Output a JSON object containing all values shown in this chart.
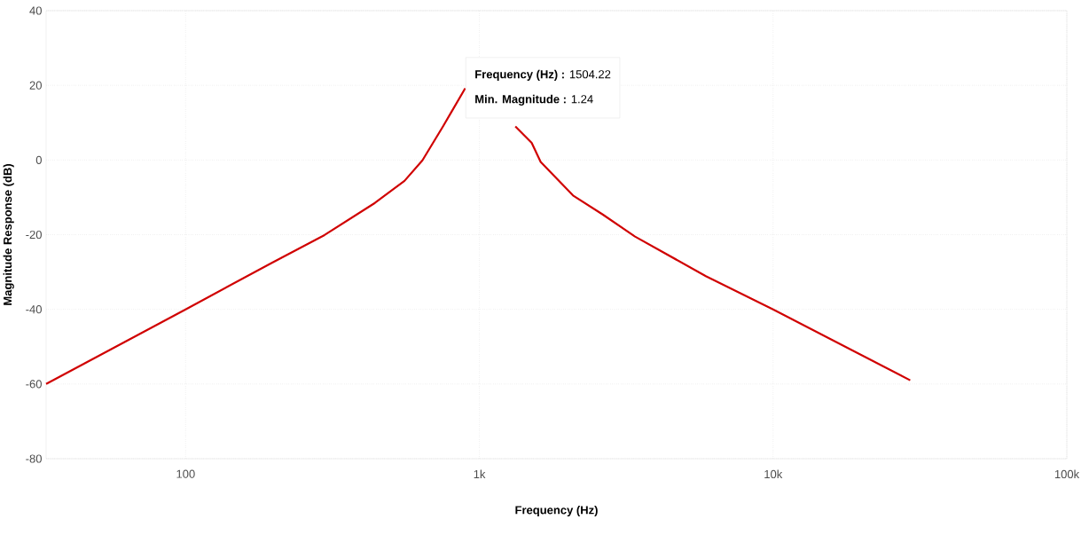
{
  "chart_data": {
    "type": "line",
    "xlabel": "Frequency (Hz)",
    "ylabel": "Magnitude Response (dB)",
    "series": [
      {
        "color": "#d00000",
        "x": [
          33.5,
          100,
          196,
          297,
          441,
          556,
          640,
          752,
          895,
          1100,
          1326,
          1507,
          1617,
          2084,
          2630,
          3388,
          5902,
          10000,
          17600,
          29300
        ],
        "values": [
          -60,
          -40,
          -27.6,
          -20.1,
          -11.5,
          -5.6,
          -0.1,
          9.0,
          19.2,
          null,
          9.0,
          4.6,
          -0.5,
          -9.5,
          -14.6,
          -20.5,
          -31.1,
          -40,
          -50,
          -59
        ]
      }
    ],
    "log": "x",
    "xlim": [
      33.5,
      100000
    ],
    "xticks": [
      {
        "value": 100,
        "label": "100"
      },
      {
        "value": 1000,
        "label": "1k"
      },
      {
        "value": 10000,
        "label": "10k"
      },
      {
        "value": 100000,
        "label": "100k"
      }
    ],
    "ylim": [
      -80,
      40
    ],
    "yticks": [
      -80,
      -60,
      -40,
      -20,
      0,
      20,
      40
    ],
    "grid": true,
    "marker": "none",
    "line_style": "solid",
    "annotations": [
      "**Frequency (Hz) :** 1504.22",
      "**Min. Magnitude :** 1.24"
    ]
  }
}
